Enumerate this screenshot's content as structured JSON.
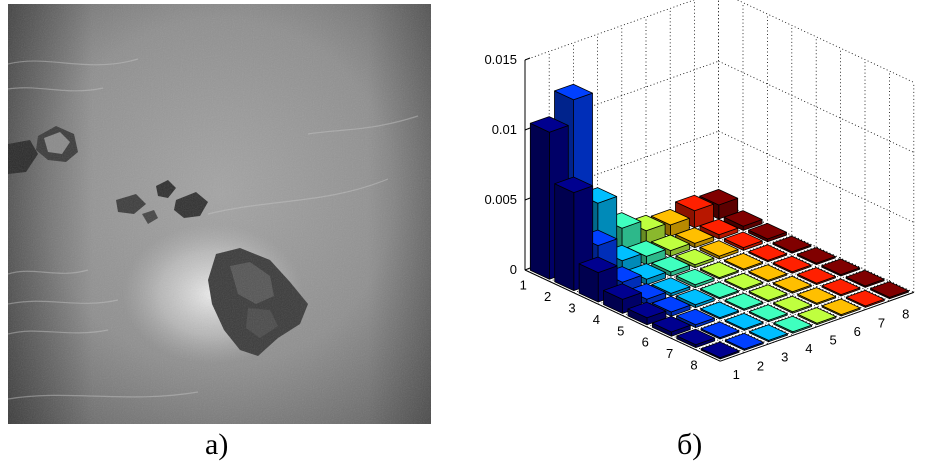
{
  "captions": {
    "left": "а)",
    "right": "б)"
  },
  "chart_data": {
    "type": "bar3d",
    "title": "",
    "xlabel": "",
    "ylabel": "",
    "zlabel": "",
    "row_categories": [
      "1",
      "2",
      "3",
      "4",
      "5",
      "6",
      "7",
      "8"
    ],
    "col_categories": [
      "1",
      "2",
      "3",
      "4",
      "5",
      "6",
      "7",
      "8"
    ],
    "zlim": [
      0,
      0.015
    ],
    "z_ticks": [
      "0",
      "0.005",
      "0.01",
      "0.015"
    ],
    "grid": true,
    "colormap": "jet",
    "values": [
      [
        0.0105,
        0.0122,
        0.0042,
        0.0018,
        0.001,
        0.0008,
        0.0012,
        0.001
      ],
      [
        0.007,
        0.0026,
        0.0009,
        0.0006,
        0.0004,
        0.0003,
        0.0003,
        0.0003
      ],
      [
        0.0021,
        0.0008,
        0.0004,
        0.0003,
        0.0002,
        0.0002,
        0.0002,
        0.0002
      ],
      [
        0.001,
        0.0004,
        0.0002,
        0.0002,
        0.0001,
        0.0001,
        0.0001,
        0.0001
      ],
      [
        0.0005,
        0.0003,
        0.0002,
        0.0001,
        0.0001,
        0.0001,
        0.0001,
        0.0001
      ],
      [
        0.0003,
        0.0002,
        0.0001,
        0.0001,
        0.0001,
        0.0001,
        0.0001,
        0.0001
      ],
      [
        0.0002,
        0.0001,
        0.0001,
        0.0001,
        0.0001,
        0.0001,
        0.0001,
        0.0001
      ],
      [
        0.0001,
        0.0001,
        0.0001,
        0.0001,
        0.0001,
        0.0001,
        0.0001,
        0.0001
      ]
    ],
    "col_colors": [
      "#00008f",
      "#0040ff",
      "#00bfff",
      "#3fffbf",
      "#bfff3f",
      "#ffbf00",
      "#ff2000",
      "#800000"
    ]
  }
}
